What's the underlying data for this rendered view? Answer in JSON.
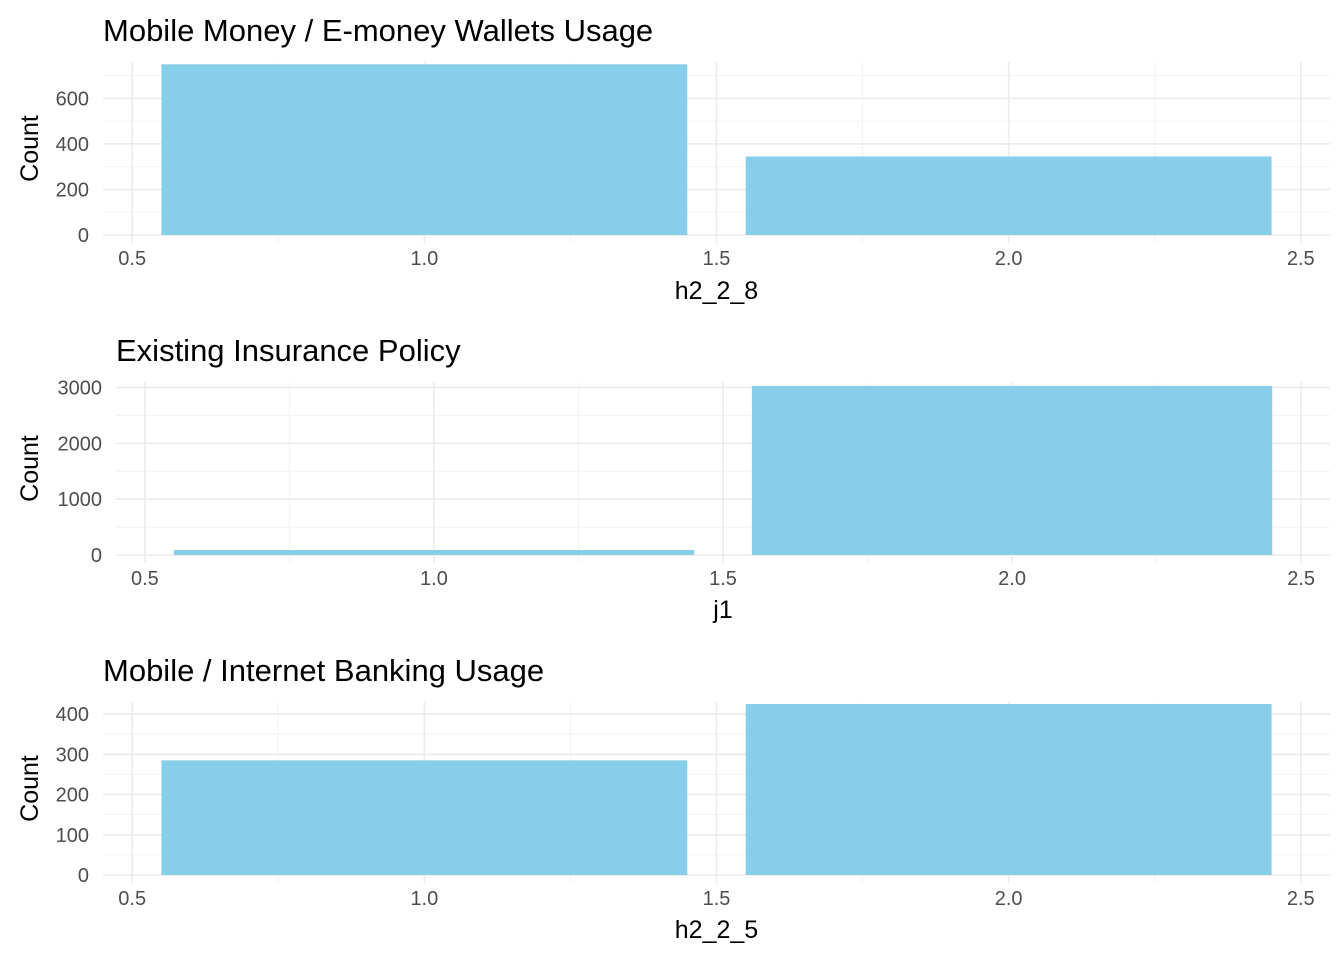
{
  "chart_data": [
    {
      "type": "bar",
      "title": "Mobile Money / E-money Wallets Usage",
      "xlabel": "h2_2_8",
      "ylabel": "Count",
      "x": [
        1,
        2
      ],
      "values": [
        750,
        345
      ],
      "bar_width": 0.9,
      "xlim": [
        0.45,
        2.55
      ],
      "ylim": [
        0,
        760
      ],
      "xticks": [
        0.5,
        1.0,
        1.5,
        2.0,
        2.5
      ],
      "xtick_labels": [
        "0.5",
        "1.0",
        "1.5",
        "2.0",
        "2.5"
      ],
      "yticks": [
        0,
        200,
        400,
        600
      ],
      "ytick_labels": [
        "0",
        "200",
        "400",
        "600"
      ],
      "grid": true,
      "bar_color": "#87CEEB"
    },
    {
      "type": "bar",
      "title": "Existing Insurance Policy",
      "xlabel": "j1",
      "ylabel": "Count",
      "x": [
        1,
        2
      ],
      "values": [
        90,
        3030
      ],
      "bar_width": 0.9,
      "xlim": [
        0.45,
        2.55
      ],
      "ylim": [
        0,
        3100
      ],
      "xticks": [
        0.5,
        1.0,
        1.5,
        2.0,
        2.5
      ],
      "xtick_labels": [
        "0.5",
        "1.0",
        "1.5",
        "2.0",
        "2.5"
      ],
      "yticks": [
        0,
        1000,
        2000,
        3000
      ],
      "ytick_labels": [
        "0",
        "1000",
        "2000",
        "3000"
      ],
      "grid": true,
      "bar_color": "#87CEEB"
    },
    {
      "type": "bar",
      "title": "Mobile / Internet Banking Usage",
      "xlabel": "h2_2_5",
      "ylabel": "Count",
      "x": [
        1,
        2
      ],
      "values": [
        285,
        425
      ],
      "bar_width": 0.9,
      "xlim": [
        0.45,
        2.55
      ],
      "ylim": [
        0,
        430
      ],
      "xticks": [
        0.5,
        1.0,
        1.5,
        2.0,
        2.5
      ],
      "xtick_labels": [
        "0.5",
        "1.0",
        "1.5",
        "2.0",
        "2.5"
      ],
      "yticks": [
        0,
        100,
        200,
        300,
        400
      ],
      "ytick_labels": [
        "0",
        "100",
        "200",
        "300",
        "400"
      ],
      "grid": true,
      "bar_color": "#87CEEB"
    }
  ]
}
